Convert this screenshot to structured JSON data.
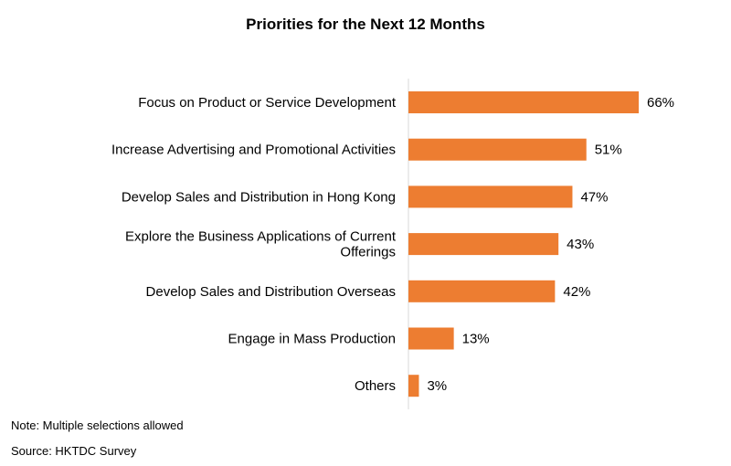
{
  "chart_data": {
    "type": "bar",
    "orientation": "horizontal",
    "title": "Priorities  for the Next 12 Months",
    "categories": [
      "Focus on Product or Service Development",
      "Increase Advertising and Promotional Activities",
      "Develop Sales and Distribution in Hong Kong",
      "Explore the Business Applications of Current Offerings",
      "Develop Sales and Distribution Overseas",
      "Engage in Mass Production",
      "Others"
    ],
    "values": [
      66,
      51,
      47,
      43,
      42,
      13,
      3
    ],
    "data_labels": [
      "66%",
      "51%",
      "47%",
      "43%",
      "42%",
      "13%",
      "3%"
    ],
    "value_unit": "%",
    "xlim": [
      0,
      70
    ],
    "grid": false,
    "legend": "none",
    "bar_color": "#ED7D31"
  },
  "footer": {
    "note": "Note: Multiple selections allowed",
    "source": "Source: HKTDC Survey"
  }
}
